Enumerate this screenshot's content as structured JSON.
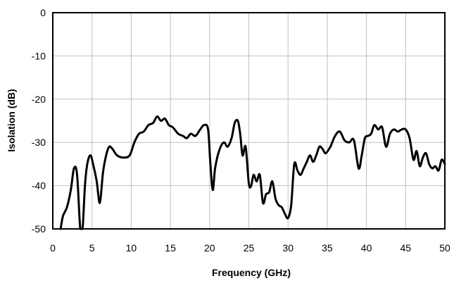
{
  "chart_data": {
    "type": "line",
    "title": "",
    "xlabel": "Frequency (GHz)",
    "ylabel": "Isolation (dB)",
    "xlim": [
      0,
      50
    ],
    "ylim": [
      -50,
      0
    ],
    "xticks": [
      "0",
      "5",
      "10",
      "15",
      "20",
      "25",
      "30",
      "35",
      "40",
      "45",
      "50"
    ],
    "yticks": [
      "0",
      "-10",
      "-20",
      "-30",
      "-40",
      "-50"
    ],
    "grid": true,
    "legend": "none",
    "line_color": "#000000",
    "series": [
      {
        "x": [
          1.0,
          1.3,
          1.8,
          2.3,
          2.7,
          3.1,
          3.5,
          3.8,
          4.1,
          4.4,
          4.8,
          5.2,
          5.6,
          6.0,
          6.4,
          6.8,
          7.2,
          7.6,
          8.2,
          9.0,
          9.8,
          10.4,
          11.0,
          11.6,
          12.2,
          12.8,
          13.3,
          13.8,
          14.3,
          14.8,
          15.3,
          16.0,
          16.6,
          17.1,
          17.6,
          18.2,
          18.8,
          19.3,
          19.8,
          20.1,
          20.4,
          20.7,
          21.2,
          21.8,
          22.3,
          22.8,
          23.2,
          23.6,
          23.9,
          24.2,
          24.6,
          25.0,
          25.3,
          25.6,
          26.0,
          26.4,
          26.8,
          27.2,
          27.6,
          28.0,
          28.4,
          28.8,
          29.2,
          29.6,
          30.0,
          30.4,
          30.8,
          31.2,
          31.6,
          32.0,
          32.4,
          32.8,
          33.2,
          33.6,
          34.0,
          34.4,
          34.8,
          35.4,
          36.0,
          36.6,
          37.2,
          37.8,
          38.4,
          39.0,
          39.4,
          39.8,
          40.2,
          40.6,
          41.0,
          41.5,
          42.0,
          42.5,
          43.0,
          43.5,
          44.0,
          44.5,
          45.0,
          45.5,
          46.0,
          46.4,
          46.8,
          47.2,
          47.6,
          48.0,
          48.4,
          48.8,
          49.2,
          49.6,
          50.0
        ],
        "y": [
          -50.0,
          -47.0,
          -45.0,
          -41.0,
          -36.0,
          -37.5,
          -50.0,
          -50.0,
          -40.0,
          -35.0,
          -33.0,
          -35.5,
          -39.0,
          -44.0,
          -37.0,
          -33.0,
          -31.0,
          -31.5,
          -33.0,
          -33.5,
          -33.0,
          -30.0,
          -28.0,
          -27.5,
          -26.0,
          -25.5,
          -24.0,
          -25.0,
          -24.5,
          -26.0,
          -26.5,
          -28.0,
          -28.5,
          -29.0,
          -28.0,
          -28.5,
          -27.0,
          -26.0,
          -27.0,
          -35.0,
          -41.0,
          -36.0,
          -32.0,
          -30.0,
          -31.0,
          -29.0,
          -25.5,
          -25.0,
          -28.0,
          -33.0,
          -31.0,
          -39.5,
          -40.0,
          -37.5,
          -39.0,
          -37.5,
          -44.0,
          -42.0,
          -41.5,
          -39.0,
          -43.0,
          -44.5,
          -45.0,
          -46.5,
          -47.5,
          -44.5,
          -35.0,
          -36.5,
          -37.5,
          -36.0,
          -34.5,
          -33.0,
          -34.5,
          -33.0,
          -31.0,
          -31.5,
          -32.5,
          -31.0,
          -28.5,
          -27.5,
          -29.5,
          -30.0,
          -29.5,
          -36.0,
          -33.0,
          -29.0,
          -28.5,
          -28.0,
          -26.0,
          -27.0,
          -26.5,
          -31.0,
          -28.0,
          -27.0,
          -27.5,
          -27.0,
          -27.0,
          -29.0,
          -34.0,
          -32.0,
          -35.5,
          -33.5,
          -32.5,
          -35.0,
          -36.0,
          -35.5,
          -36.5,
          -34.0,
          -35.0
        ]
      }
    ]
  }
}
